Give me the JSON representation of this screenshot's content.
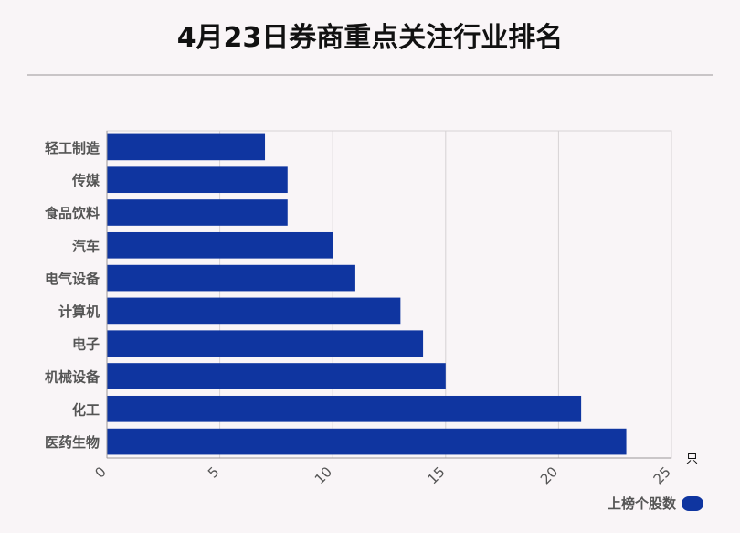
{
  "title": "4月23日券商重点关注行业排名",
  "unit": "只",
  "legend": {
    "label": "上榜个股数"
  },
  "colors": {
    "bar": "#0f35a0",
    "grid": "#d6d2d4",
    "axis": "#9a9698",
    "label": "#555555"
  },
  "chart_data": {
    "type": "bar",
    "orientation": "horizontal",
    "title": "4月23日券商重点关注行业排名",
    "categories": [
      "轻工制造",
      "传媒",
      "食品饮料",
      "汽车",
      "电气设备",
      "计算机",
      "电子",
      "机械设备",
      "化工",
      "医药生物"
    ],
    "series": [
      {
        "name": "上榜个股数",
        "values": [
          7,
          8,
          8,
          10,
          11,
          13,
          14,
          15,
          21,
          23
        ]
      }
    ],
    "xlim": [
      0,
      25
    ],
    "xticks": [
      0,
      5,
      10,
      15,
      20,
      25
    ],
    "xlabel": "只",
    "ylabel": "",
    "grid": true,
    "legend_position": "bottom-right"
  }
}
